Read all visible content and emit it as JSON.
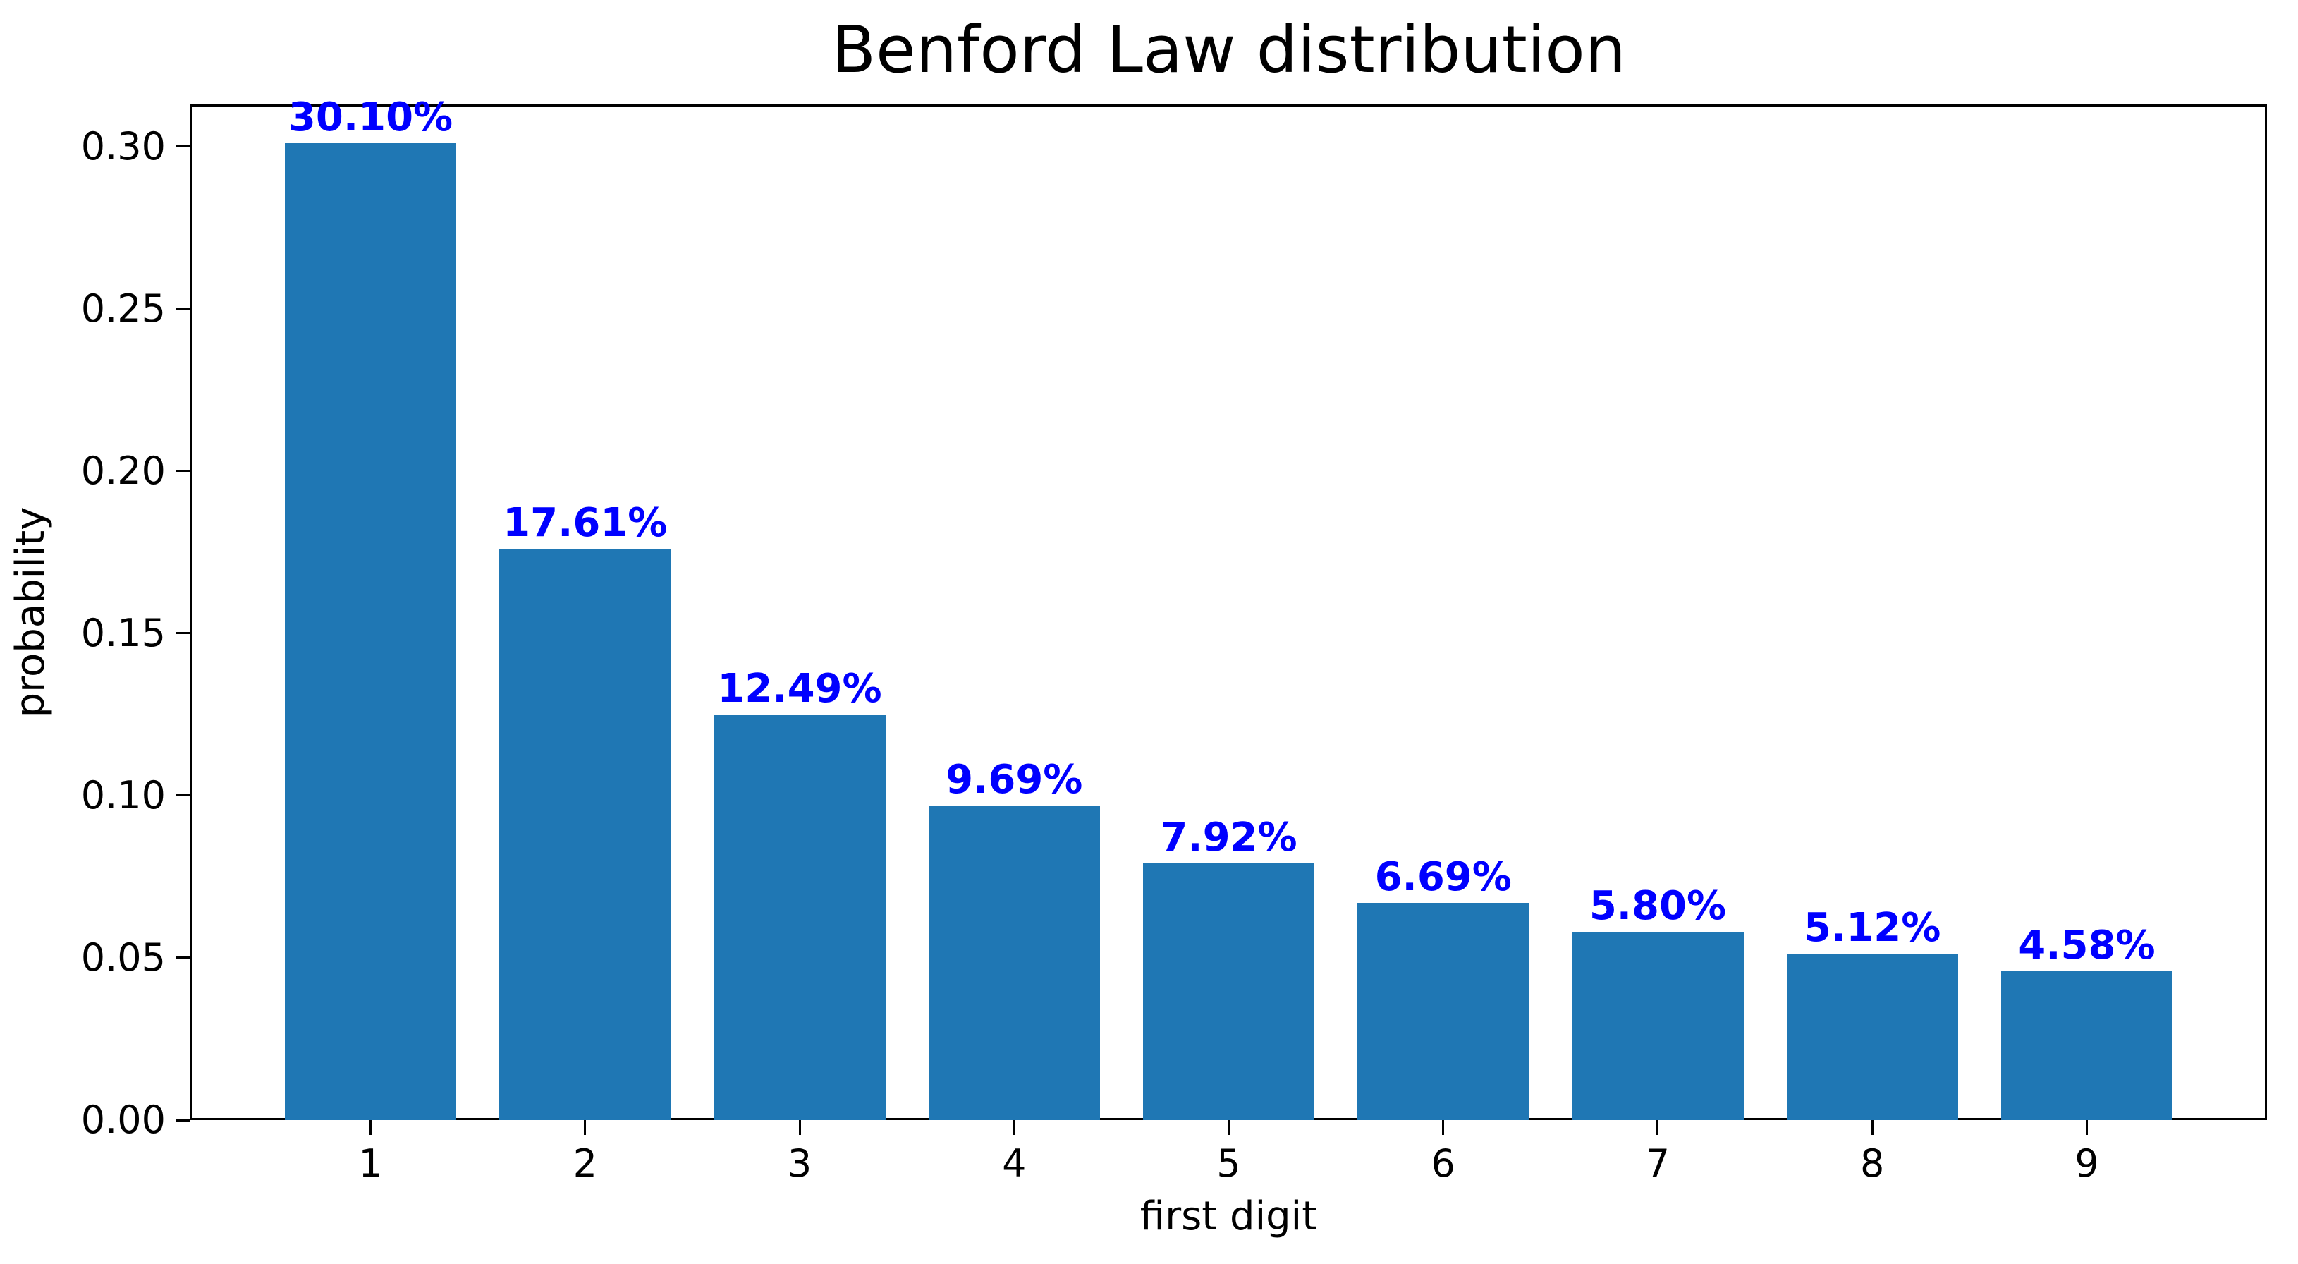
{
  "figure": {
    "background_color": "#ffffff",
    "frame_color": "#000000"
  },
  "chart_data": {
    "type": "bar",
    "title": "Benford Law distribution",
    "xlabel": "first digit",
    "ylabel": "probability",
    "categories": [
      "1",
      "2",
      "3",
      "4",
      "5",
      "6",
      "7",
      "8",
      "9"
    ],
    "values": [
      0.301,
      0.1761,
      0.1249,
      0.0969,
      0.0792,
      0.0669,
      0.058,
      0.0512,
      0.0458
    ],
    "bar_labels": [
      "30.10%",
      "17.61%",
      "12.49%",
      "9.69%",
      "7.92%",
      "6.69%",
      "5.80%",
      "5.12%",
      "4.58%"
    ],
    "y_ticks": [
      "0.00",
      "0.05",
      "0.10",
      "0.15",
      "0.20",
      "0.25",
      "0.30"
    ],
    "y_tick_values": [
      0.0,
      0.05,
      0.1,
      0.15,
      0.2,
      0.25,
      0.3
    ],
    "ylim": [
      0,
      0.313
    ],
    "grid": false,
    "legend": null,
    "bar_color": "#1f77b4",
    "label_color": "#0000ff"
  }
}
